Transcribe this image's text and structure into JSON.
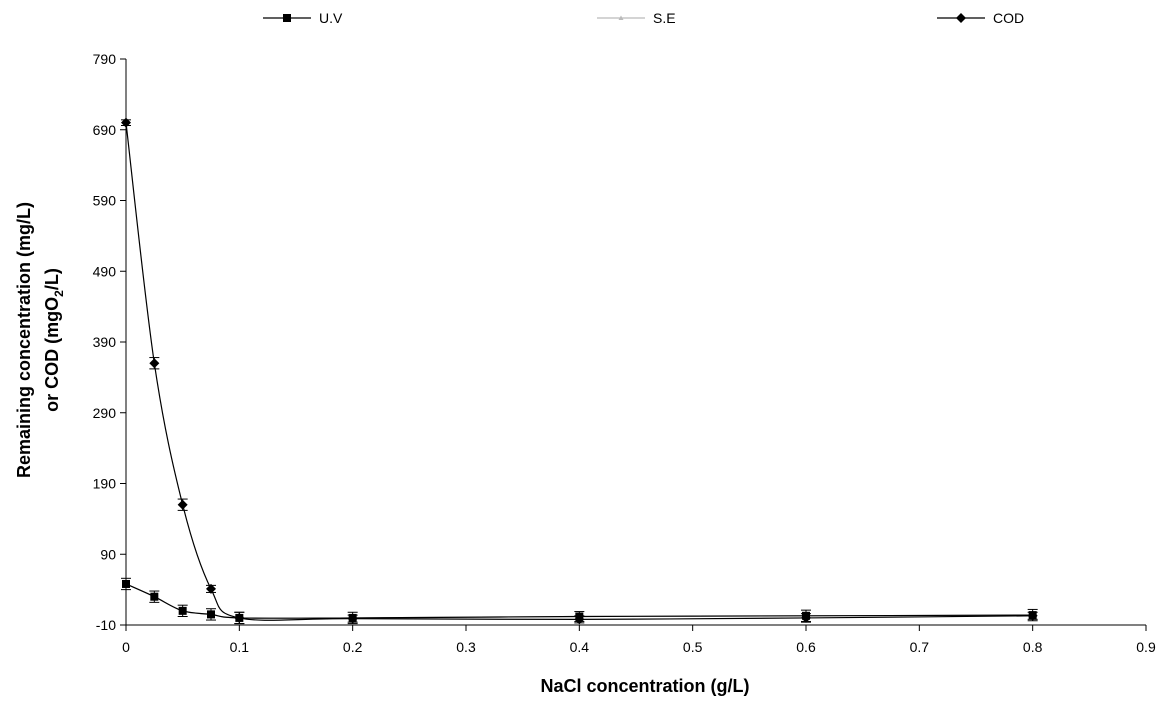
{
  "chart_data": {
    "type": "line",
    "title": "",
    "xlabel": "NaCl concentration (g/L)",
    "ylabel": {
      "line1": "Remaining concentration (mg/L)",
      "line2_prefix": "or COD (mgO",
      "line2_sub": "2",
      "line2_suffix": "/L)"
    },
    "xlim": [
      0,
      0.9
    ],
    "ylim": [
      -10,
      790
    ],
    "x_ticks": [
      "0",
      "0.1",
      "0.2",
      "0.3",
      "0.4",
      "0.5",
      "0.6",
      "0.7",
      "0.8",
      "0.9"
    ],
    "y_ticks": [
      "-10",
      "90",
      "190",
      "290",
      "390",
      "490",
      "590",
      "690",
      "790"
    ],
    "legend_position": "top",
    "grid": false,
    "series": [
      {
        "name": "U.V",
        "marker": "square",
        "color": "#000000",
        "x": [
          0,
          0.025,
          0.05,
          0.075,
          0.1,
          0.2,
          0.4,
          0.6,
          0.8
        ],
        "y": [
          48,
          30,
          10,
          5,
          0,
          0,
          2,
          3,
          4
        ],
        "err": [
          8,
          8,
          8,
          8,
          8,
          8,
          7,
          8,
          8
        ]
      },
      {
        "name": "S.E",
        "marker": "triangle",
        "color": "#bbbbbb",
        "x": [
          0,
          0.025,
          0.05,
          0.075,
          0.1,
          0.2,
          0.4,
          0.6,
          0.8
        ],
        "y": [
          48,
          30,
          10,
          5,
          0,
          0,
          2,
          3,
          4
        ],
        "err": [
          0,
          0,
          0,
          0,
          0,
          0,
          0,
          0,
          0
        ]
      },
      {
        "name": "COD",
        "marker": "diamond",
        "color": "#000000",
        "x": [
          0,
          0.025,
          0.05,
          0.075,
          0.1,
          0.2,
          0.4,
          0.6,
          0.8
        ],
        "y": [
          700,
          360,
          160,
          41,
          0,
          -1,
          -2,
          0,
          3
        ],
        "err": [
          4,
          8,
          8,
          5,
          8,
          5,
          5,
          6,
          5
        ]
      }
    ]
  }
}
